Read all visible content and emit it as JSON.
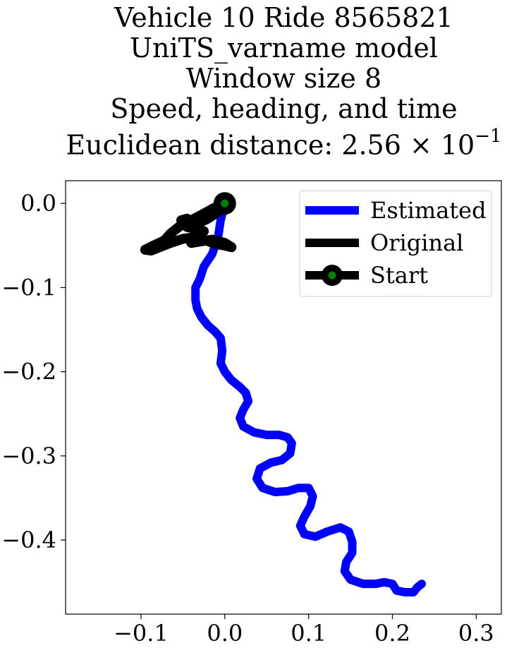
{
  "title": {
    "line1": "Vehicle 10 Ride 8565821",
    "line2": "UniTS_varname model",
    "line3": "Window size 8",
    "line4": "Speed, heading, and time",
    "line5_prefix": "Euclidean distance: 2.56 × 10",
    "line5_exp": "−1"
  },
  "chart_data": {
    "type": "line",
    "xlim": [
      -0.19,
      0.33
    ],
    "ylim": [
      -0.488,
      0.027
    ],
    "x_ticks": [
      -0.1,
      0.0,
      0.1,
      0.2,
      0.3
    ],
    "x_tick_labels": [
      "−0.1",
      "0.0",
      "0.1",
      "0.2",
      "0.3"
    ],
    "y_ticks": [
      0.0,
      -0.1,
      -0.2,
      -0.3,
      -0.4
    ],
    "y_tick_labels": [
      "0.0",
      "−0.1",
      "−0.2",
      "−0.3",
      "−0.4"
    ],
    "grid": false,
    "legend_position": "top-right",
    "series": [
      {
        "name": "Estimated",
        "color": "#0000ff",
        "points": [
          [
            0.0,
            0.0
          ],
          [
            -0.005,
            -0.02
          ],
          [
            -0.008,
            -0.04
          ],
          [
            -0.015,
            -0.06
          ],
          [
            -0.025,
            -0.075
          ],
          [
            -0.03,
            -0.09
          ],
          [
            -0.035,
            -0.1
          ],
          [
            -0.035,
            -0.115
          ],
          [
            -0.033,
            -0.125
          ],
          [
            -0.028,
            -0.135
          ],
          [
            -0.02,
            -0.145
          ],
          [
            -0.012,
            -0.152
          ],
          [
            -0.005,
            -0.16
          ],
          [
            -0.003,
            -0.175
          ],
          [
            -0.005,
            -0.19
          ],
          [
            0.0,
            -0.2
          ],
          [
            0.008,
            -0.21
          ],
          [
            0.018,
            -0.218
          ],
          [
            0.025,
            -0.225
          ],
          [
            0.028,
            -0.235
          ],
          [
            0.022,
            -0.245
          ],
          [
            0.018,
            -0.255
          ],
          [
            0.022,
            -0.265
          ],
          [
            0.035,
            -0.272
          ],
          [
            0.05,
            -0.275
          ],
          [
            0.065,
            -0.275
          ],
          [
            0.075,
            -0.278
          ],
          [
            0.08,
            -0.285
          ],
          [
            0.078,
            -0.297
          ],
          [
            0.068,
            -0.305
          ],
          [
            0.055,
            -0.308
          ],
          [
            0.042,
            -0.315
          ],
          [
            0.038,
            -0.327
          ],
          [
            0.045,
            -0.338
          ],
          [
            0.06,
            -0.343
          ],
          [
            0.075,
            -0.342
          ],
          [
            0.088,
            -0.338
          ],
          [
            0.1,
            -0.338
          ],
          [
            0.105,
            -0.348
          ],
          [
            0.102,
            -0.36
          ],
          [
            0.095,
            -0.372
          ],
          [
            0.09,
            -0.383
          ],
          [
            0.095,
            -0.393
          ],
          [
            0.108,
            -0.396
          ],
          [
            0.122,
            -0.39
          ],
          [
            0.138,
            -0.385
          ],
          [
            0.148,
            -0.39
          ],
          [
            0.152,
            -0.402
          ],
          [
            0.152,
            -0.415
          ],
          [
            0.145,
            -0.426
          ],
          [
            0.143,
            -0.437
          ],
          [
            0.15,
            -0.447
          ],
          [
            0.165,
            -0.452
          ],
          [
            0.18,
            -0.452
          ],
          [
            0.19,
            -0.45
          ],
          [
            0.2,
            -0.452
          ],
          [
            0.205,
            -0.46
          ],
          [
            0.215,
            -0.462
          ],
          [
            0.225,
            -0.462
          ],
          [
            0.23,
            -0.456
          ],
          [
            0.235,
            -0.452
          ]
        ]
      },
      {
        "name": "Original",
        "color": "#000000",
        "points": [
          [
            0.0,
            0.0
          ],
          [
            -0.012,
            -0.005
          ],
          [
            -0.025,
            -0.012
          ],
          [
            -0.04,
            -0.02
          ],
          [
            -0.055,
            -0.028
          ],
          [
            -0.065,
            -0.036
          ],
          [
            -0.072,
            -0.044
          ],
          [
            -0.085,
            -0.05
          ],
          [
            -0.095,
            -0.055
          ],
          [
            -0.088,
            -0.056
          ],
          [
            -0.078,
            -0.052
          ],
          [
            -0.065,
            -0.047
          ],
          [
            -0.05,
            -0.042
          ],
          [
            -0.035,
            -0.04
          ],
          [
            -0.022,
            -0.044
          ],
          [
            -0.012,
            -0.048
          ],
          [
            0.0,
            -0.05
          ],
          [
            0.008,
            -0.052
          ],
          [
            0.0,
            -0.047
          ],
          [
            -0.015,
            -0.043
          ],
          [
            -0.028,
            -0.045
          ],
          [
            -0.04,
            -0.047
          ],
          [
            -0.035,
            -0.04
          ],
          [
            -0.025,
            -0.033
          ],
          [
            -0.035,
            -0.03
          ],
          [
            -0.045,
            -0.028
          ],
          [
            -0.052,
            -0.02
          ],
          [
            -0.045,
            -0.018
          ],
          [
            -0.035,
            -0.025
          ],
          [
            -0.02,
            -0.018
          ],
          [
            -0.008,
            -0.01
          ],
          [
            0.0,
            -0.005
          ],
          [
            0.0,
            0.0
          ]
        ]
      },
      {
        "name": "Start",
        "color": "#000000",
        "marker_face": "#008000",
        "points": [
          [
            0.0,
            0.0
          ]
        ]
      }
    ]
  }
}
